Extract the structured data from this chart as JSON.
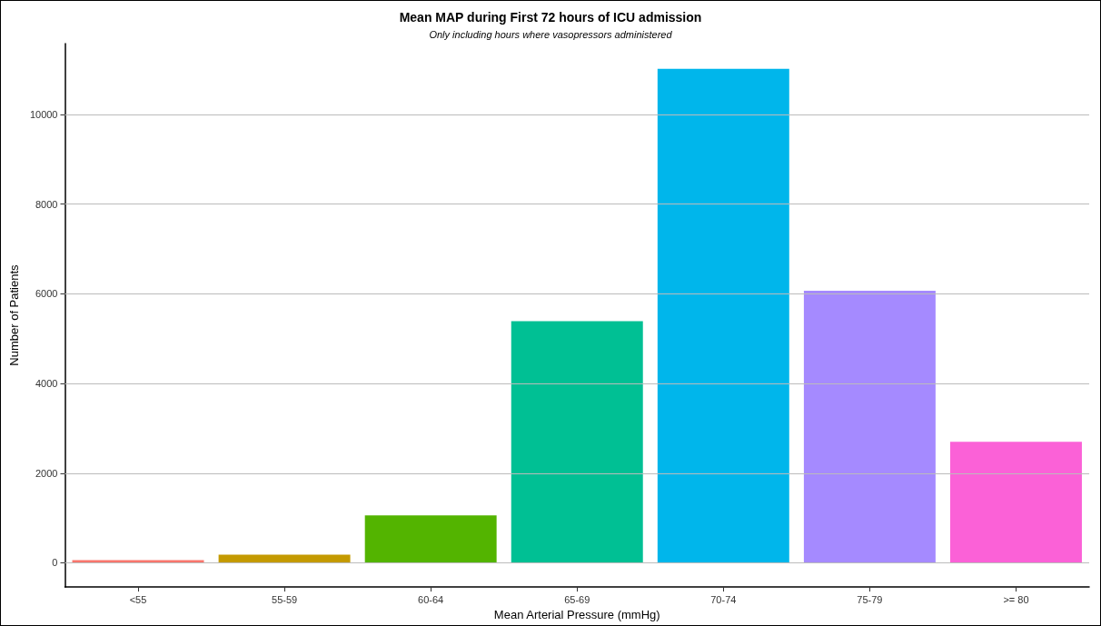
{
  "chart_data": {
    "type": "bar",
    "title": "Mean MAP during First 72 hours of ICU admission",
    "subtitle": "Only including hours where vasopressors administered",
    "xlabel": "Mean Arterial Pressure (mmHg)",
    "ylabel": "Number of Patients",
    "categories": [
      "<55",
      "55-59",
      "60-64",
      "65-69",
      "70-74",
      "75-79",
      ">= 80"
    ],
    "values": [
      60,
      180,
      1060,
      5390,
      11020,
      6070,
      2700
    ],
    "colors": [
      "#f8766d",
      "#c49a00",
      "#53b400",
      "#00c094",
      "#00b6eb",
      "#a58aff",
      "#fb61d7"
    ],
    "ylim": [
      -540,
      11580
    ],
    "yticks": [
      0,
      2000,
      4000,
      6000,
      8000,
      10000
    ],
    "grid": "y"
  }
}
